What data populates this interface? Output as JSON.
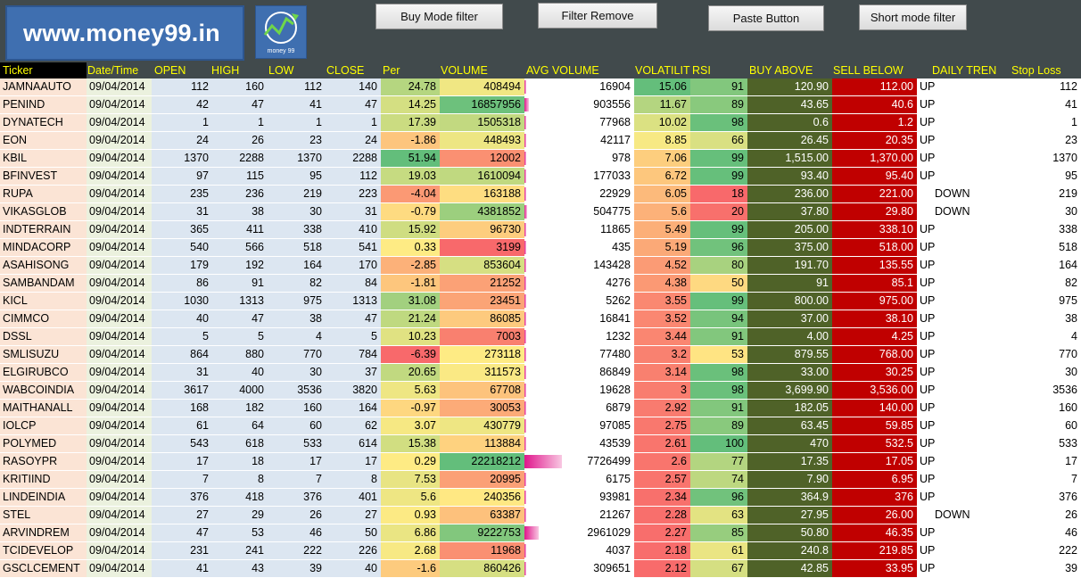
{
  "header": {
    "logo_text": "www.money99.in",
    "logo_icon_caption": "money 99",
    "buttons": {
      "buy_mode_filter": "Buy Mode filter",
      "filter_remove": "Filter Remove",
      "paste_button": "Paste Button",
      "short_mode_filter": "Short mode filter"
    }
  },
  "columns": {
    "ticker": "Ticker",
    "date_time": "Date/Time",
    "open": "OPEN",
    "high": "HIGH",
    "low": "LOW",
    "close": "CLOSE",
    "per": "Per",
    "volume": "VOLUME",
    "avg_volume": "AVG VOLUME",
    "volatility": "VOLATILIT",
    "rsi": "RSI",
    "buy_above": "BUY ABOVE",
    "sell_below": "SELL BELOW",
    "daily_trend": "DAILY TREN",
    "stop_loss": "Stop Loss"
  },
  "rows": [
    {
      "ticker": "JAMNAAUTO",
      "date": "09/04/2014",
      "open": "112",
      "high": "160",
      "low": "112",
      "close": "140",
      "per": "24.78",
      "volume": "408494",
      "avg_volume": "16904",
      "volatility": "15.06",
      "rsi": "91",
      "buy_above": "120.90",
      "sell_below": "112.00",
      "trend": "UP",
      "stop_loss": "112"
    },
    {
      "ticker": "PENIND",
      "date": "09/04/2014",
      "open": "42",
      "high": "47",
      "low": "41",
      "close": "47",
      "per": "14.25",
      "volume": "16857956",
      "avg_volume": "903556",
      "volatility": "11.67",
      "rsi": "89",
      "buy_above": "43.65",
      "sell_below": "40.6",
      "trend": "UP",
      "stop_loss": "41"
    },
    {
      "ticker": "DYNATECH",
      "date": "09/04/2014",
      "open": "1",
      "high": "1",
      "low": "1",
      "close": "1",
      "per": "17.39",
      "volume": "1505318",
      "avg_volume": "77968",
      "volatility": "10.02",
      "rsi": "98",
      "buy_above": "0.6",
      "sell_below": "1.2",
      "trend": "UP",
      "stop_loss": "1"
    },
    {
      "ticker": "EON",
      "date": "09/04/2014",
      "open": "24",
      "high": "26",
      "low": "23",
      "close": "24",
      "per": "-1.86",
      "volume": "448493",
      "avg_volume": "42117",
      "volatility": "8.85",
      "rsi": "66",
      "buy_above": "26.45",
      "sell_below": "20.35",
      "trend": "UP",
      "stop_loss": "23"
    },
    {
      "ticker": "KBIL",
      "date": "09/04/2014",
      "open": "1370",
      "high": "2288",
      "low": "1370",
      "close": "2288",
      "per": "51.94",
      "volume": "12002",
      "avg_volume": "978",
      "volatility": "7.06",
      "rsi": "99",
      "buy_above": "1,515.00",
      "sell_below": "1,370.00",
      "trend": "UP",
      "stop_loss": "1370"
    },
    {
      "ticker": "BFINVEST",
      "date": "09/04/2014",
      "open": "97",
      "high": "115",
      "low": "95",
      "close": "112",
      "per": "19.03",
      "volume": "1610094",
      "avg_volume": "177033",
      "volatility": "6.72",
      "rsi": "99",
      "buy_above": "93.40",
      "sell_below": "95.40",
      "trend": "UP",
      "stop_loss": "95"
    },
    {
      "ticker": "RUPA",
      "date": "09/04/2014",
      "open": "235",
      "high": "236",
      "low": "219",
      "close": "223",
      "per": "-4.04",
      "volume": "163188",
      "avg_volume": "22929",
      "volatility": "6.05",
      "rsi": "18",
      "buy_above": "236.00",
      "sell_below": "221.00",
      "trend": "DOWN",
      "stop_loss": "219"
    },
    {
      "ticker": "VIKASGLOB",
      "date": "09/04/2014",
      "open": "31",
      "high": "38",
      "low": "30",
      "close": "31",
      "per": "-0.79",
      "volume": "4381852",
      "avg_volume": "504775",
      "volatility": "5.6",
      "rsi": "20",
      "buy_above": "37.80",
      "sell_below": "29.80",
      "trend": "DOWN",
      "stop_loss": "30"
    },
    {
      "ticker": "INDTERRAIN",
      "date": "09/04/2014",
      "open": "365",
      "high": "411",
      "low": "338",
      "close": "410",
      "per": "15.92",
      "volume": "96730",
      "avg_volume": "11865",
      "volatility": "5.49",
      "rsi": "99",
      "buy_above": "205.00",
      "sell_below": "338.10",
      "trend": "UP",
      "stop_loss": "338"
    },
    {
      "ticker": "MINDACORP",
      "date": "09/04/2014",
      "open": "540",
      "high": "566",
      "low": "518",
      "close": "541",
      "per": "0.33",
      "volume": "3199",
      "avg_volume": "435",
      "volatility": "5.19",
      "rsi": "96",
      "buy_above": "375.00",
      "sell_below": "518.00",
      "trend": "UP",
      "stop_loss": "518"
    },
    {
      "ticker": "ASAHISONG",
      "date": "09/04/2014",
      "open": "179",
      "high": "192",
      "low": "164",
      "close": "170",
      "per": "-2.85",
      "volume": "853604",
      "avg_volume": "143428",
      "volatility": "4.52",
      "rsi": "80",
      "buy_above": "191.70",
      "sell_below": "135.55",
      "trend": "UP",
      "stop_loss": "164"
    },
    {
      "ticker": "SAMBANDAM",
      "date": "09/04/2014",
      "open": "86",
      "high": "91",
      "low": "82",
      "close": "84",
      "per": "-1.81",
      "volume": "21252",
      "avg_volume": "4276",
      "volatility": "4.38",
      "rsi": "50",
      "buy_above": "91",
      "sell_below": "85.1",
      "trend": "UP",
      "stop_loss": "82"
    },
    {
      "ticker": "KICL",
      "date": "09/04/2014",
      "open": "1030",
      "high": "1313",
      "low": "975",
      "close": "1313",
      "per": "31.08",
      "volume": "23451",
      "avg_volume": "5262",
      "volatility": "3.55",
      "rsi": "99",
      "buy_above": "800.00",
      "sell_below": "975.00",
      "trend": "UP",
      "stop_loss": "975"
    },
    {
      "ticker": "CIMMCO",
      "date": "09/04/2014",
      "open": "40",
      "high": "47",
      "low": "38",
      "close": "47",
      "per": "21.24",
      "volume": "86085",
      "avg_volume": "16841",
      "volatility": "3.52",
      "rsi": "94",
      "buy_above": "37.00",
      "sell_below": "38.10",
      "trend": "UP",
      "stop_loss": "38"
    },
    {
      "ticker": "DSSL",
      "date": "09/04/2014",
      "open": "5",
      "high": "5",
      "low": "4",
      "close": "5",
      "per": "10.23",
      "volume": "7003",
      "avg_volume": "1232",
      "volatility": "3.44",
      "rsi": "91",
      "buy_above": "4.00",
      "sell_below": "4.25",
      "trend": "UP",
      "stop_loss": "4"
    },
    {
      "ticker": "SMLISUZU",
      "date": "09/04/2014",
      "open": "864",
      "high": "880",
      "low": "770",
      "close": "784",
      "per": "-6.39",
      "volume": "273118",
      "avg_volume": "77480",
      "volatility": "3.2",
      "rsi": "53",
      "buy_above": "879.55",
      "sell_below": "768.00",
      "trend": "UP",
      "stop_loss": "770"
    },
    {
      "ticker": "ELGIRUBCO",
      "date": "09/04/2014",
      "open": "31",
      "high": "40",
      "low": "30",
      "close": "37",
      "per": "20.65",
      "volume": "311573",
      "avg_volume": "86849",
      "volatility": "3.14",
      "rsi": "98",
      "buy_above": "33.00",
      "sell_below": "30.25",
      "trend": "UP",
      "stop_loss": "30"
    },
    {
      "ticker": "WABCOINDIA",
      "date": "09/04/2014",
      "open": "3617",
      "high": "4000",
      "low": "3536",
      "close": "3820",
      "per": "5.63",
      "volume": "67708",
      "avg_volume": "19628",
      "volatility": "3",
      "rsi": "98",
      "buy_above": "3,699.90",
      "sell_below": "3,536.00",
      "trend": "UP",
      "stop_loss": "3536"
    },
    {
      "ticker": "MAITHANALL",
      "date": "09/04/2014",
      "open": "168",
      "high": "182",
      "low": "160",
      "close": "164",
      "per": "-0.97",
      "volume": "30053",
      "avg_volume": "6879",
      "volatility": "2.92",
      "rsi": "91",
      "buy_above": "182.05",
      "sell_below": "140.00",
      "trend": "UP",
      "stop_loss": "160"
    },
    {
      "ticker": "IOLCP",
      "date": "09/04/2014",
      "open": "61",
      "high": "64",
      "low": "60",
      "close": "62",
      "per": "3.07",
      "volume": "430779",
      "avg_volume": "97085",
      "volatility": "2.75",
      "rsi": "89",
      "buy_above": "63.45",
      "sell_below": "59.85",
      "trend": "UP",
      "stop_loss": "60"
    },
    {
      "ticker": "POLYMED",
      "date": "09/04/2014",
      "open": "543",
      "high": "618",
      "low": "533",
      "close": "614",
      "per": "15.38",
      "volume": "113884",
      "avg_volume": "43539",
      "volatility": "2.61",
      "rsi": "100",
      "buy_above": "470",
      "sell_below": "532.5",
      "trend": "UP",
      "stop_loss": "533"
    },
    {
      "ticker": "RASOYPR",
      "date": "09/04/2014",
      "open": "17",
      "high": "18",
      "low": "17",
      "close": "17",
      "per": "0.29",
      "volume": "22218212",
      "avg_volume": "7726499",
      "volatility": "2.6",
      "rsi": "77",
      "buy_above": "17.35",
      "sell_below": "17.05",
      "trend": "UP",
      "stop_loss": "17"
    },
    {
      "ticker": "KRITIIND",
      "date": "09/04/2014",
      "open": "7",
      "high": "8",
      "low": "7",
      "close": "8",
      "per": "7.53",
      "volume": "20995",
      "avg_volume": "6175",
      "volatility": "2.57",
      "rsi": "74",
      "buy_above": "7.90",
      "sell_below": "6.95",
      "trend": "UP",
      "stop_loss": "7"
    },
    {
      "ticker": "LINDEINDIA",
      "date": "09/04/2014",
      "open": "376",
      "high": "418",
      "low": "376",
      "close": "401",
      "per": "5.6",
      "volume": "240356",
      "avg_volume": "93981",
      "volatility": "2.34",
      "rsi": "96",
      "buy_above": "364.9",
      "sell_below": "376",
      "trend": "UP",
      "stop_loss": "376"
    },
    {
      "ticker": "STEL",
      "date": "09/04/2014",
      "open": "27",
      "high": "29",
      "low": "26",
      "close": "27",
      "per": "0.93",
      "volume": "63387",
      "avg_volume": "21267",
      "volatility": "2.28",
      "rsi": "63",
      "buy_above": "27.95",
      "sell_below": "26.00",
      "trend": "DOWN",
      "stop_loss": "26"
    },
    {
      "ticker": "ARVINDREM",
      "date": "09/04/2014",
      "open": "47",
      "high": "53",
      "low": "46",
      "close": "50",
      "per": "6.86",
      "volume": "9222753",
      "avg_volume": "2961029",
      "volatility": "2.27",
      "rsi": "85",
      "buy_above": "50.80",
      "sell_below": "46.35",
      "trend": "UP",
      "stop_loss": "46"
    },
    {
      "ticker": "TCIDEVELOP",
      "date": "09/04/2014",
      "open": "231",
      "high": "241",
      "low": "222",
      "close": "226",
      "per": "2.68",
      "volume": "11968",
      "avg_volume": "4037",
      "volatility": "2.18",
      "rsi": "61",
      "buy_above": "240.8",
      "sell_below": "219.85",
      "trend": "UP",
      "stop_loss": "222"
    },
    {
      "ticker": "GSCLCEMENT",
      "date": "09/04/2014",
      "open": "41",
      "high": "43",
      "low": "39",
      "close": "40",
      "per": "-1.6",
      "volume": "860426",
      "avg_volume": "309651",
      "volatility": "2.12",
      "rsi": "67",
      "buy_above": "42.85",
      "sell_below": "33.95",
      "trend": "UP",
      "stop_loss": "39"
    }
  ],
  "colors": {
    "background": "#414a4c",
    "header_text": "#ffff00",
    "buy_above_fill": "#4f6228",
    "sell_below_fill": "#c00000",
    "databar": "#e0168c"
  }
}
